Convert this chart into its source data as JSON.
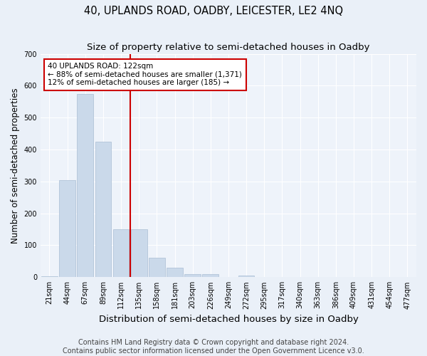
{
  "title": "40, UPLANDS ROAD, OADBY, LEICESTER, LE2 4NQ",
  "subtitle": "Size of property relative to semi-detached houses in Oadby",
  "xlabel": "Distribution of semi-detached houses by size in Oadby",
  "ylabel": "Number of semi-detached properties",
  "categories": [
    "21sqm",
    "44sqm",
    "67sqm",
    "89sqm",
    "112sqm",
    "135sqm",
    "158sqm",
    "181sqm",
    "203sqm",
    "226sqm",
    "249sqm",
    "272sqm",
    "295sqm",
    "317sqm",
    "340sqm",
    "363sqm",
    "386sqm",
    "409sqm",
    "431sqm",
    "454sqm",
    "477sqm"
  ],
  "bar_heights": [
    2,
    305,
    575,
    425,
    150,
    150,
    60,
    30,
    10,
    10,
    0,
    5,
    0,
    0,
    0,
    0,
    0,
    0,
    0,
    0,
    0
  ],
  "bar_color": "#cad9ea",
  "bar_edge_color": "#aabdd4",
  "property_line_x": 4.5,
  "annotation_line1": "40 UPLANDS ROAD: 122sqm",
  "annotation_line2": "← 88% of semi-detached houses are smaller (1,371)",
  "annotation_line3": "12% of semi-detached houses are larger (185) →",
  "annotation_box_color": "#ffffff",
  "annotation_box_edge": "#cc0000",
  "vline_color": "#cc0000",
  "ylim": [
    0,
    700
  ],
  "yticks": [
    0,
    100,
    200,
    300,
    400,
    500,
    600,
    700
  ],
  "footer_line1": "Contains HM Land Registry data © Crown copyright and database right 2024.",
  "footer_line2": "Contains public sector information licensed under the Open Government Licence v3.0.",
  "bg_color": "#eaf0f8",
  "plot_bg_color": "#eef3fa",
  "grid_color": "#ffffff",
  "title_fontsize": 10.5,
  "subtitle_fontsize": 9.5,
  "xlabel_fontsize": 9.5,
  "ylabel_fontsize": 8.5,
  "tick_fontsize": 7,
  "footer_fontsize": 7,
  "annot_fontsize": 7.5
}
